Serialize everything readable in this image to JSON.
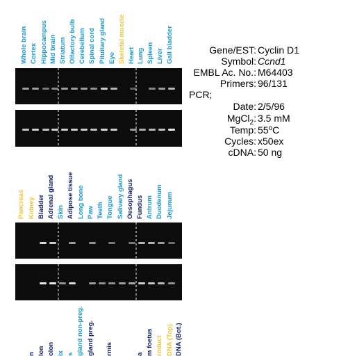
{
  "panel_top": {
    "lanes": [
      {
        "label": "Whole brain",
        "color": "#1a9ad6"
      },
      {
        "label": "Cortex",
        "color": "#1a9ad6"
      },
      {
        "label": "Hippocampus",
        "color": "#1a9ad6"
      },
      {
        "label": "Mid brain",
        "color": "#1a9ad6"
      },
      {
        "label": "Striatum",
        "color": "#1a9ad6"
      },
      {
        "label": "Olfactory bulb",
        "color": "#1a9ad6"
      },
      {
        "label": "Cerebellum",
        "color": "#1a9ad6"
      },
      {
        "label": "Spinal cord",
        "color": "#1a9ad6"
      },
      {
        "label": "Pituitary gland",
        "color": "#1a9ad6"
      },
      {
        "label": "Eye",
        "color": "#1a9ad6"
      },
      {
        "label": "Skeletal muscle",
        "color": "#f0c43a"
      },
      {
        "label": "Heart",
        "color": "#1a9ad6"
      },
      {
        "label": "Lung",
        "color": "#1a9ad6"
      },
      {
        "label": "Spleen",
        "color": "#1a9ad6"
      },
      {
        "label": "Liver",
        "color": "#1a9ad6"
      },
      {
        "label": "Gall bladder",
        "color": "#1a9ad6"
      }
    ]
  },
  "panel_middle": {
    "lanes": [
      {
        "label": "Pancreas",
        "color": "#f0c43a"
      },
      {
        "label": "Kidney",
        "color": "#f0c43a"
      },
      {
        "label": "Bladder",
        "color": "#0d1f6e"
      },
      {
        "label": "Adrenal gland",
        "color": "#0d1f6e"
      },
      {
        "label": "Skin",
        "color": "#1a9ad6"
      },
      {
        "label": "Adipose tissue",
        "color": "#0d1f6e"
      },
      {
        "label": "Long bone",
        "color": "#1a9ad6"
      },
      {
        "label": "Paw",
        "color": "#1a9ad6"
      },
      {
        "label": "Teeth",
        "color": "#1a9ad6"
      },
      {
        "label": "Tongue",
        "color": "#1a9ad6"
      },
      {
        "label": "Salivary gland",
        "color": "#1a9ad6"
      },
      {
        "label": "Oesophagus",
        "color": "#0d1f6e"
      },
      {
        "label": "Fundus",
        "color": "#0d1f6e"
      },
      {
        "label": "Antrum",
        "color": "#1a9ad6"
      },
      {
        "label": "Duodenum",
        "color": "#1a9ad6"
      },
      {
        "label": "Jejunum",
        "color": "#1a9ad6"
      }
    ]
  },
  "panel_bottom": {
    "lanes": [
      {
        "label": "n",
        "color": "#0d1f6e"
      },
      {
        "label": "lon",
        "color": "#0d1f6e"
      },
      {
        "label": "olon",
        "color": "#0d1f6e"
      },
      {
        "label": "ix",
        "color": "#1a9ad6"
      },
      {
        "label": "s",
        "color": "#1a9ad6"
      },
      {
        "label": "gland non-preg.",
        "color": "#1a9ad6"
      },
      {
        "label": "gland preg.",
        "color": "#0d1f6e"
      },
      {
        "label": "rmis",
        "color": "#0d1f6e"
      },
      {
        "label": "a",
        "color": "#0d1f6e"
      },
      {
        "label": "m foetus",
        "color": "#0d1f6e"
      },
      {
        "label": "roduct",
        "color": "#f0c43a"
      },
      {
        "label": "DNA (Top)",
        "color": "#f0c43a"
      },
      {
        "label": "DNA (Bot.)",
        "color": "#0d1f6e"
      }
    ]
  },
  "info": {
    "gene_label": "Gene/EST:",
    "gene": "Cyclin D1",
    "symbol_label": "Symbol:",
    "symbol": "Ccnd1",
    "embl_label": "EMBL Ac. No.:",
    "embl": "M64403",
    "primers_label": "Primers:",
    "primers": "96/131",
    "pcr_label": "PCR;",
    "date_label": "Date:",
    "date": "2/5/96",
    "mgcl_label": "MgCl",
    "mgcl_sub": "2",
    "mgcl_colon": ":",
    "mgcl": "3.5 mM",
    "temp_label": "Temp:",
    "temp": "55",
    "temp_sup": "o",
    "temp_unit": "C",
    "cycles_label": "Cycles:",
    "cycles": "x50ex",
    "cdna_label": "cDNA:",
    "cdna": "50 ng"
  }
}
